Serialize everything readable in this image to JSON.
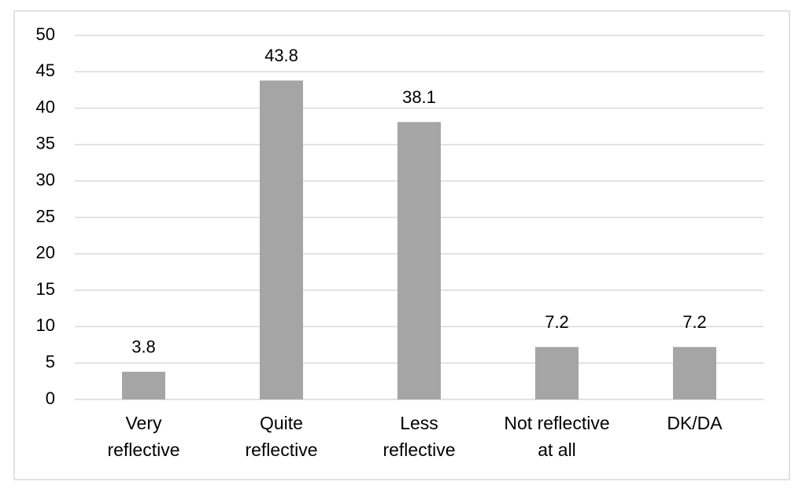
{
  "chart_data": {
    "type": "bar",
    "categories": [
      "Very\nreflective",
      "Quite\nreflective",
      "Less\nreflective",
      "Not reflective\nat all",
      "DK/DA"
    ],
    "values": [
      3.8,
      43.8,
      38.1,
      7.2,
      7.2
    ],
    "color": "#a5a5a5",
    "ylim": [
      0,
      50
    ],
    "yticks": [
      0,
      5,
      10,
      15,
      20,
      25,
      30,
      35,
      40,
      45,
      50
    ],
    "grid": true
  }
}
